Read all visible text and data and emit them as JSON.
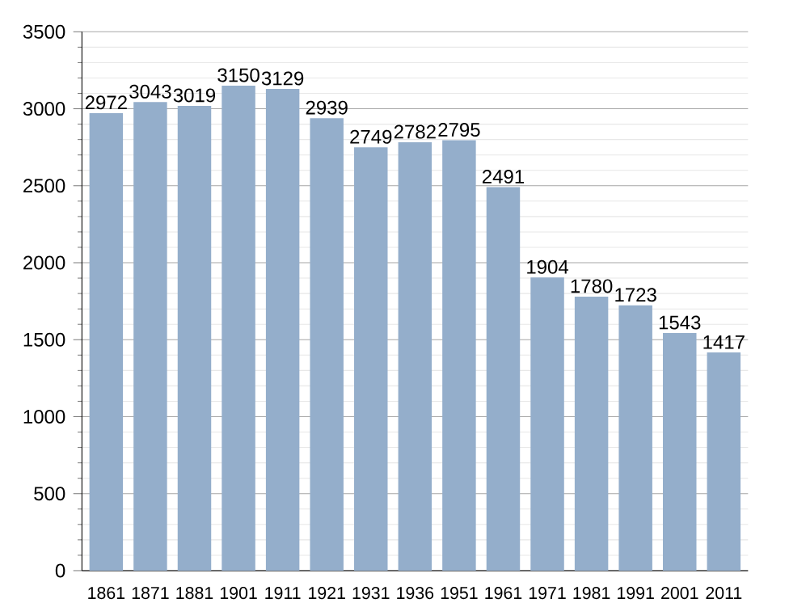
{
  "chart_data": {
    "type": "bar",
    "categories": [
      "1861",
      "1871",
      "1881",
      "1901",
      "1911",
      "1921",
      "1931",
      "1936",
      "1951",
      "1961",
      "1971",
      "1981",
      "1991",
      "2001",
      "2011"
    ],
    "values": [
      2972,
      3043,
      3019,
      3150,
      3129,
      2939,
      2749,
      2782,
      2795,
      2491,
      1904,
      1780,
      1723,
      1543,
      1417
    ],
    "color": "#94aecb",
    "ylim": [
      0,
      3500
    ],
    "yticks": [
      0,
      500,
      1000,
      1500,
      2000,
      2500,
      3000,
      3500
    ],
    "grid": "y",
    "data_labels": true
  }
}
